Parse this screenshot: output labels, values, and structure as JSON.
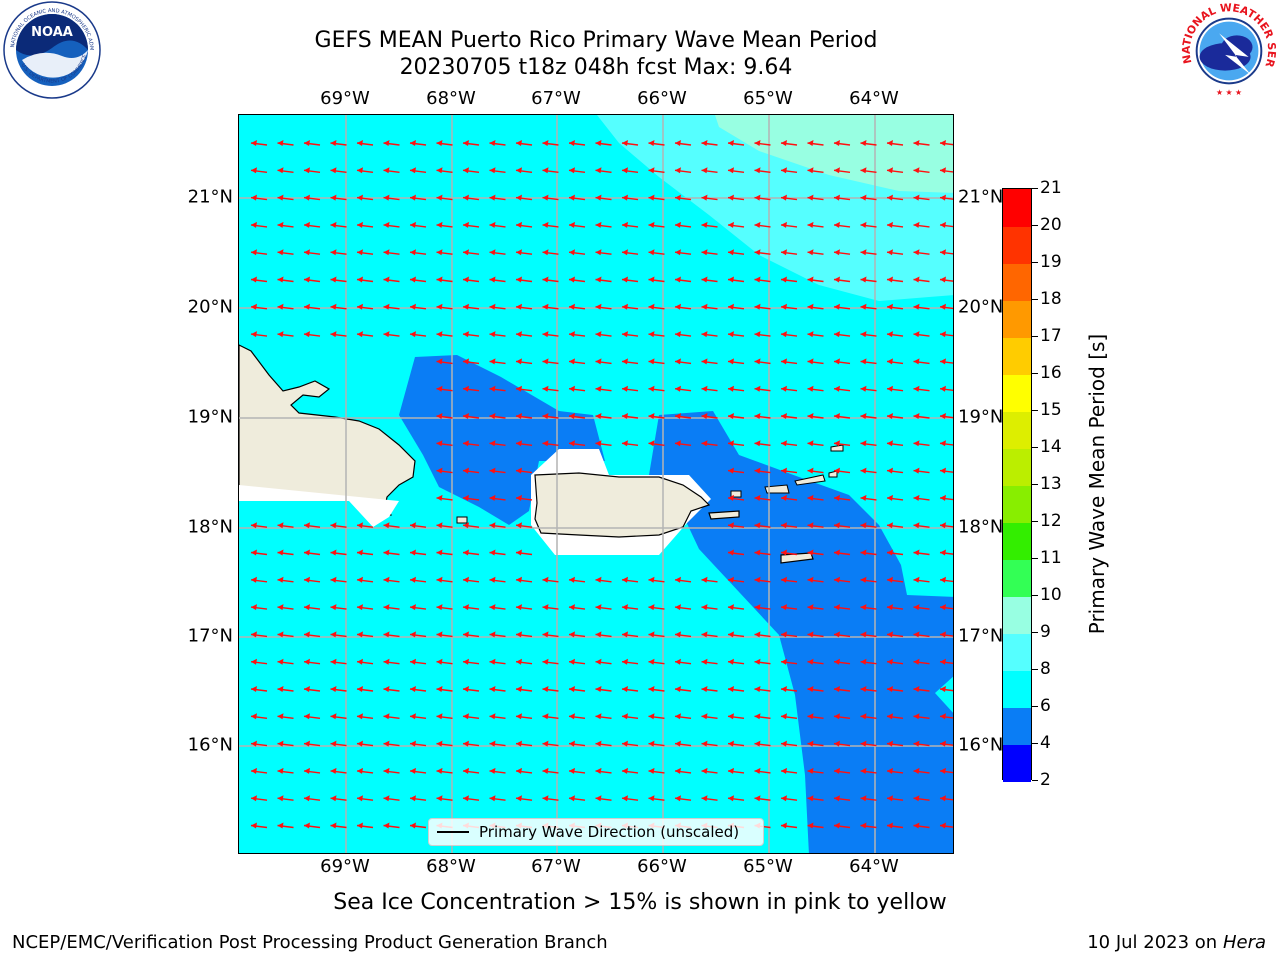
{
  "title": {
    "line1": "GEFS MEAN Puerto Rico Primary Wave Mean Period",
    "line2": "20230705 t18z 048h fcst   Max: 9.64"
  },
  "map": {
    "lon_ticks": [
      "69°W",
      "68°W",
      "67°W",
      "66°W",
      "65°W",
      "64°W"
    ],
    "lat_ticks": [
      "21°N",
      "20°N",
      "19°N",
      "18°N",
      "17°N",
      "16°N"
    ],
    "colors": {
      "band_4_6": "#0a7df5",
      "band_6_8": "#00ffff",
      "band_8_9": "#55ffff",
      "band_9_10": "#98ffe2",
      "land": "#efecdc",
      "arrow": "#ff1010",
      "grid": "#b4b4b4"
    },
    "legend": "Primary Wave Direction (unscaled)"
  },
  "colorbar": {
    "label": "Primary Wave Mean Period [s]",
    "ticks": [
      "2",
      "4",
      "6",
      "8",
      "9",
      "10",
      "11",
      "12",
      "13",
      "14",
      "15",
      "16",
      "17",
      "18",
      "19",
      "20",
      "21"
    ],
    "colors": [
      "#0000ff",
      "#0a7df5",
      "#00ffff",
      "#55ffff",
      "#98ffe2",
      "#33ff55",
      "#33ee00",
      "#88ee00",
      "#bbee00",
      "#ddee00",
      "#ffff00",
      "#ffcc00",
      "#ff9900",
      "#ff6600",
      "#ff3300",
      "#ff0000"
    ]
  },
  "notes": {
    "ice": "Sea Ice Concentration > 15% is shown in pink to yellow"
  },
  "footer": {
    "left": "NCEP/EMC/Verification Post Processing Product Generation Branch",
    "date": "10 Jul 2023 on ",
    "host": "Hera"
  },
  "logos": {
    "noaa_text": "NOAA",
    "noaa_ring": "NATIONAL OCEANIC AND ATMOSPHERIC ADMINISTRATION",
    "noaa_ring_bottom": "U.S. DEPARTMENT OF COMMERCE",
    "nws_ring": "NATIONAL WEATHER SERVICE"
  }
}
